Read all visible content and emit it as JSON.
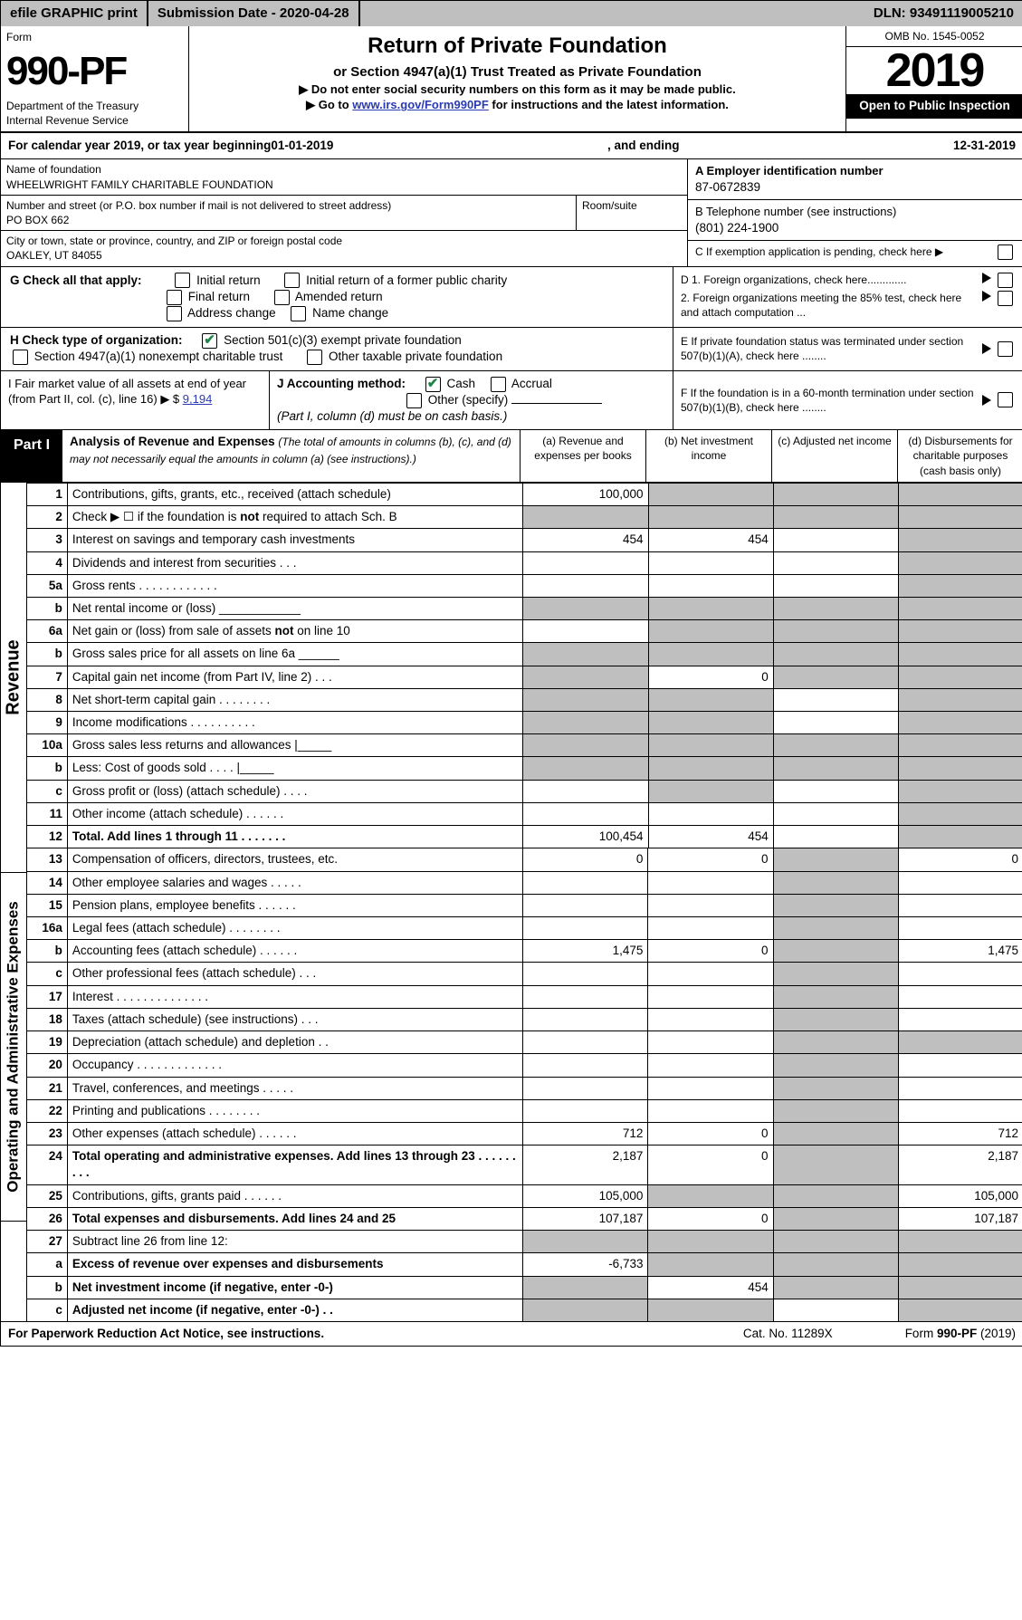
{
  "top": {
    "efile": "efile GRAPHIC print",
    "subdate_label": "Submission Date - 2020-04-28",
    "dln": "DLN: 93491119005210"
  },
  "hdr": {
    "form_label": "Form",
    "form_no": "990-PF",
    "dept": "Department of the Treasury",
    "irs": "Internal Revenue Service",
    "title": "Return of Private Foundation",
    "subtitle": "or Section 4947(a)(1) Trust Treated as Private Foundation",
    "note1": "▶ Do not enter social security numbers on this form as it may be made public.",
    "note2_prefix": "▶ Go to ",
    "note2_link": "www.irs.gov/Form990PF",
    "note2_suffix": " for instructions and the latest information.",
    "omb": "OMB No. 1545-0052",
    "year": "2019",
    "openpub": "Open to Public Inspection"
  },
  "calyr": {
    "prefix": "For calendar year 2019, or tax year beginning ",
    "begin": "01-01-2019",
    "mid": " , and ending ",
    "end": "12-31-2019"
  },
  "id_block": {
    "name_label": "Name of foundation",
    "name": "WHEELWRIGHT FAMILY CHARITABLE FOUNDATION",
    "addr_label": "Number and street (or P.O. box number if mail is not delivered to street address)",
    "addr": "PO BOX 662",
    "room_label": "Room/suite",
    "city_label": "City or town, state or province, country, and ZIP or foreign postal code",
    "city": "OAKLEY, UT  84055",
    "ein_label": "A Employer identification number",
    "ein": "87-0672839",
    "tel_label": "B Telephone number (see instructions)",
    "tel": "(801) 224-1900",
    "c_label": "C  If exemption application is pending, check here ▶",
    "d1": "D 1. Foreign organizations, check here.............",
    "d2": "   2. Foreign organizations meeting the 85% test, check here and attach computation ...",
    "e_label": "E  If private foundation status was terminated under section 507(b)(1)(A), check here ........",
    "f_label": "F  If the foundation is in a 60-month termination under section 507(b)(1)(B), check here ........"
  },
  "g": {
    "label": "G Check all that apply:",
    "opts": [
      "Initial return",
      "Initial return of a former public charity",
      "Final return",
      "Amended return",
      "Address change",
      "Name change"
    ]
  },
  "h": {
    "label": "H Check type of organization:",
    "o1": "Section 501(c)(3) exempt private foundation",
    "o2": "Section 4947(a)(1) nonexempt charitable trust",
    "o3": "Other taxable private foundation"
  },
  "i": {
    "label": "I Fair market value of all assets at end of year (from Part II, col. (c), line 16) ▶ $",
    "val": "9,194"
  },
  "j": {
    "label": "J Accounting method:",
    "cash": "Cash",
    "accrual": "Accrual",
    "other": "Other (specify)",
    "note": "(Part I, column (d) must be on cash basis.)"
  },
  "part1": {
    "tab": "Part I",
    "title": "Analysis of Revenue and Expenses",
    "title_note": " (The total of amounts in columns (b), (c), and (d) may not necessarily equal the amounts in column (a) (see instructions).)",
    "colA": "(a)   Revenue and expenses per books",
    "colB": "(b)  Net investment income",
    "colC": "(c)  Adjusted net income",
    "colD": "(d)  Disbursements for charitable purposes (cash basis only)",
    "sideRev": "Revenue",
    "sideExp": "Operating and Administrative Expenses",
    "rows": [
      {
        "n": "1",
        "d": "Contributions, gifts, grants, etc., received (attach schedule)",
        "a": "100,000",
        "b": "",
        "bs": true,
        "c": "",
        "cs": true,
        "dv": "",
        "ds": true
      },
      {
        "n": "2",
        "d": "Check ▶ ☐ if the foundation is not required to attach Sch. B",
        "a": "",
        "as": true,
        "b": "",
        "bs": true,
        "c": "",
        "cs": true,
        "dv": "",
        "ds": true
      },
      {
        "n": "3",
        "d": "Interest on savings and temporary cash investments",
        "a": "454",
        "b": "454",
        "c": "",
        "dv": "",
        "ds": true
      },
      {
        "n": "4",
        "d": "Dividends and interest from securities  .  .  .",
        "a": "",
        "b": "",
        "c": "",
        "dv": "",
        "ds": true
      },
      {
        "n": "5a",
        "d": "Gross rents  .  .  .  .  .  .  .  .  .  .  .  .",
        "a": "",
        "b": "",
        "c": "",
        "dv": "",
        "ds": true
      },
      {
        "n": "b",
        "d": "Net rental income or (loss)  ____________",
        "a": "",
        "as": true,
        "b": "",
        "bs": true,
        "c": "",
        "cs": true,
        "dv": "",
        "ds": true
      },
      {
        "n": "6a",
        "d": "Net gain or (loss) from sale of assets not on line 10",
        "a": "",
        "b": "",
        "bs": true,
        "c": "",
        "cs": true,
        "dv": "",
        "ds": true
      },
      {
        "n": "b",
        "d": "Gross sales price for all assets on line 6a ______",
        "a": "",
        "as": true,
        "b": "",
        "bs": true,
        "c": "",
        "cs": true,
        "dv": "",
        "ds": true
      },
      {
        "n": "7",
        "d": "Capital gain net income (from Part IV, line 2)  .  .  .",
        "a": "",
        "as": true,
        "b": "0",
        "c": "",
        "cs": true,
        "dv": "",
        "ds": true
      },
      {
        "n": "8",
        "d": "Net short-term capital gain  .  .  .  .  .  .  .  .",
        "a": "",
        "as": true,
        "b": "",
        "bs": true,
        "c": "",
        "dv": "",
        "ds": true
      },
      {
        "n": "9",
        "d": "Income modifications  .  .  .  .  .  .  .  .  .  .",
        "a": "",
        "as": true,
        "b": "",
        "bs": true,
        "c": "",
        "dv": "",
        "ds": true
      },
      {
        "n": "10a",
        "d": "Gross sales less returns and allowances  |_____",
        "a": "",
        "as": true,
        "b": "",
        "bs": true,
        "c": "",
        "cs": true,
        "dv": "",
        "ds": true
      },
      {
        "n": "b",
        "d": "Less: Cost of goods sold  .  .  .  . |_____",
        "a": "",
        "as": true,
        "b": "",
        "bs": true,
        "c": "",
        "cs": true,
        "dv": "",
        "ds": true
      },
      {
        "n": "c",
        "d": "Gross profit or (loss) (attach schedule)  .  .  .  .",
        "a": "",
        "b": "",
        "bs": true,
        "c": "",
        "dv": "",
        "ds": true
      },
      {
        "n": "11",
        "d": "Other income (attach schedule)  .  .  .  .  .  .",
        "a": "",
        "b": "",
        "c": "",
        "dv": "",
        "ds": true
      },
      {
        "n": "12",
        "d": "Total. Add lines 1 through 11  .  .  .  .  .  .  .",
        "bold": true,
        "a": "100,454",
        "b": "454",
        "c": "",
        "dv": "",
        "ds": true
      }
    ],
    "rowsExp": [
      {
        "n": "13",
        "d": "Compensation of officers, directors, trustees, etc.",
        "a": "0",
        "b": "0",
        "c": "",
        "cs": true,
        "dv": "0"
      },
      {
        "n": "14",
        "d": "Other employee salaries and wages  .  .  .  .  .",
        "a": "",
        "b": "",
        "c": "",
        "cs": true,
        "dv": ""
      },
      {
        "n": "15",
        "d": "Pension plans, employee benefits  .  .  .  .  .  .",
        "a": "",
        "b": "",
        "c": "",
        "cs": true,
        "dv": ""
      },
      {
        "n": "16a",
        "d": "Legal fees (attach schedule)  .  .  .  .  .  .  .  .",
        "a": "",
        "b": "",
        "c": "",
        "cs": true,
        "dv": ""
      },
      {
        "n": "b",
        "d": "Accounting fees (attach schedule)  .  .  .  .  .  .",
        "a": "1,475",
        "b": "0",
        "c": "",
        "cs": true,
        "dv": "1,475"
      },
      {
        "n": "c",
        "d": "Other professional fees (attach schedule)  .  .  .",
        "a": "",
        "b": "",
        "c": "",
        "cs": true,
        "dv": ""
      },
      {
        "n": "17",
        "d": "Interest  .  .  .  .  .  .  .  .  .  .  .  .  .  .",
        "a": "",
        "b": "",
        "c": "",
        "cs": true,
        "dv": ""
      },
      {
        "n": "18",
        "d": "Taxes (attach schedule) (see instructions)  .  .  .",
        "a": "",
        "b": "",
        "c": "",
        "cs": true,
        "dv": ""
      },
      {
        "n": "19",
        "d": "Depreciation (attach schedule) and depletion  .  .",
        "a": "",
        "b": "",
        "c": "",
        "cs": true,
        "dv": "",
        "ds": true
      },
      {
        "n": "20",
        "d": "Occupancy  .  .  .  .  .  .  .  .  .  .  .  .  .",
        "a": "",
        "b": "",
        "c": "",
        "cs": true,
        "dv": ""
      },
      {
        "n": "21",
        "d": "Travel, conferences, and meetings  .  .  .  .  .",
        "a": "",
        "b": "",
        "c": "",
        "cs": true,
        "dv": ""
      },
      {
        "n": "22",
        "d": "Printing and publications  .  .  .  .  .  .  .  .",
        "a": "",
        "b": "",
        "c": "",
        "cs": true,
        "dv": ""
      },
      {
        "n": "23",
        "d": "Other expenses (attach schedule)  .  .  .  .  .  .",
        "a": "712",
        "b": "0",
        "c": "",
        "cs": true,
        "dv": "712"
      },
      {
        "n": "24",
        "d": "Total operating and administrative expenses. Add lines 13 through 23  .  .  .  .  .  .  .  .  .",
        "bold": true,
        "a": "2,187",
        "b": "0",
        "c": "",
        "cs": true,
        "dv": "2,187"
      },
      {
        "n": "25",
        "d": "Contributions, gifts, grants paid  .  .  .  .  .  .",
        "a": "105,000",
        "b": "",
        "bs": true,
        "c": "",
        "cs": true,
        "dv": "105,000"
      },
      {
        "n": "26",
        "d": "Total expenses and disbursements. Add lines 24 and 25",
        "bold": true,
        "a": "107,187",
        "b": "0",
        "c": "",
        "cs": true,
        "dv": "107,187"
      }
    ],
    "rows27": [
      {
        "n": "27",
        "d": "Subtract line 26 from line 12:",
        "a": "",
        "as": true,
        "b": "",
        "bs": true,
        "c": "",
        "cs": true,
        "dv": "",
        "ds": true
      },
      {
        "n": "a",
        "d": "Excess of revenue over expenses and disbursements",
        "bold": true,
        "a": "-6,733",
        "b": "",
        "bs": true,
        "c": "",
        "cs": true,
        "dv": "",
        "ds": true
      },
      {
        "n": "b",
        "d": "Net investment income (if negative, enter -0-)",
        "bold": true,
        "a": "",
        "as": true,
        "b": "454",
        "c": "",
        "cs": true,
        "dv": "",
        "ds": true
      },
      {
        "n": "c",
        "d": "Adjusted net income (if negative, enter -0-)  .  .",
        "bold": true,
        "a": "",
        "as": true,
        "b": "",
        "bs": true,
        "c": "",
        "dv": "",
        "ds": true
      }
    ]
  },
  "footer": {
    "left": "For Paperwork Reduction Act Notice, see instructions.",
    "mid": "Cat. No. 11289X",
    "right": "Form 990-PF (2019)"
  }
}
